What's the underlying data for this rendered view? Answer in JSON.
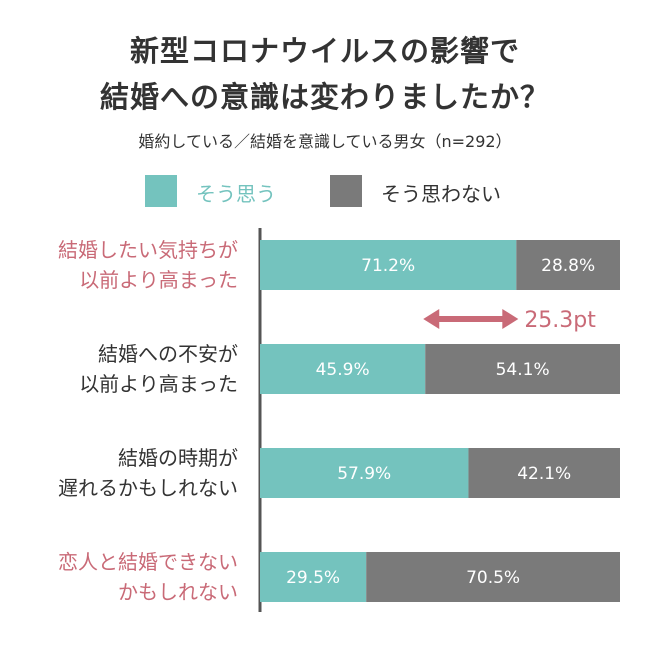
{
  "title": {
    "line1": "新型コロナウイルスの影響で",
    "line2": "結婚への意識は変わりましたか？"
  },
  "subtitle": "婚約している／結婚を意識している男女（n=292）",
  "colors": {
    "teal": "#74C3BE",
    "gray": "#7A7A7A",
    "pink": "#C96A77",
    "text": "#333333"
  },
  "legend": [
    {
      "label": "そう思う",
      "color": "#74C3BE"
    },
    {
      "label": "そう思わない",
      "color": "#7A7A7A"
    }
  ],
  "chart_data": {
    "type": "bar",
    "orientation": "horizontal",
    "stacked": true,
    "xlim": [
      0,
      100
    ],
    "categories": [
      [
        "結婚したい気持ちが",
        "以前より高まった"
      ],
      [
        "結婚への不安が",
        "以前より高まった"
      ],
      [
        "結婚の時期が",
        "遅れるかもしれない"
      ],
      [
        "恋人と結婚できない",
        "かもしれない"
      ]
    ],
    "category_highlight": [
      true,
      false,
      false,
      true
    ],
    "series": [
      {
        "name": "そう思う",
        "values": [
          71.2,
          45.9,
          57.9,
          29.5
        ],
        "labels": [
          "71.2%",
          "45.9%",
          "57.9%",
          "29.5%"
        ]
      },
      {
        "name": "そう思わない",
        "values": [
          28.8,
          54.1,
          42.1,
          70.5
        ],
        "labels": [
          "28.8%",
          "54.1%",
          "42.1%",
          "70.5%"
        ]
      }
    ],
    "annotations": [
      {
        "text": "25.3pt",
        "between_categories": [
          0,
          1
        ],
        "from_value": 45.9,
        "to_value": 71.2
      }
    ]
  }
}
